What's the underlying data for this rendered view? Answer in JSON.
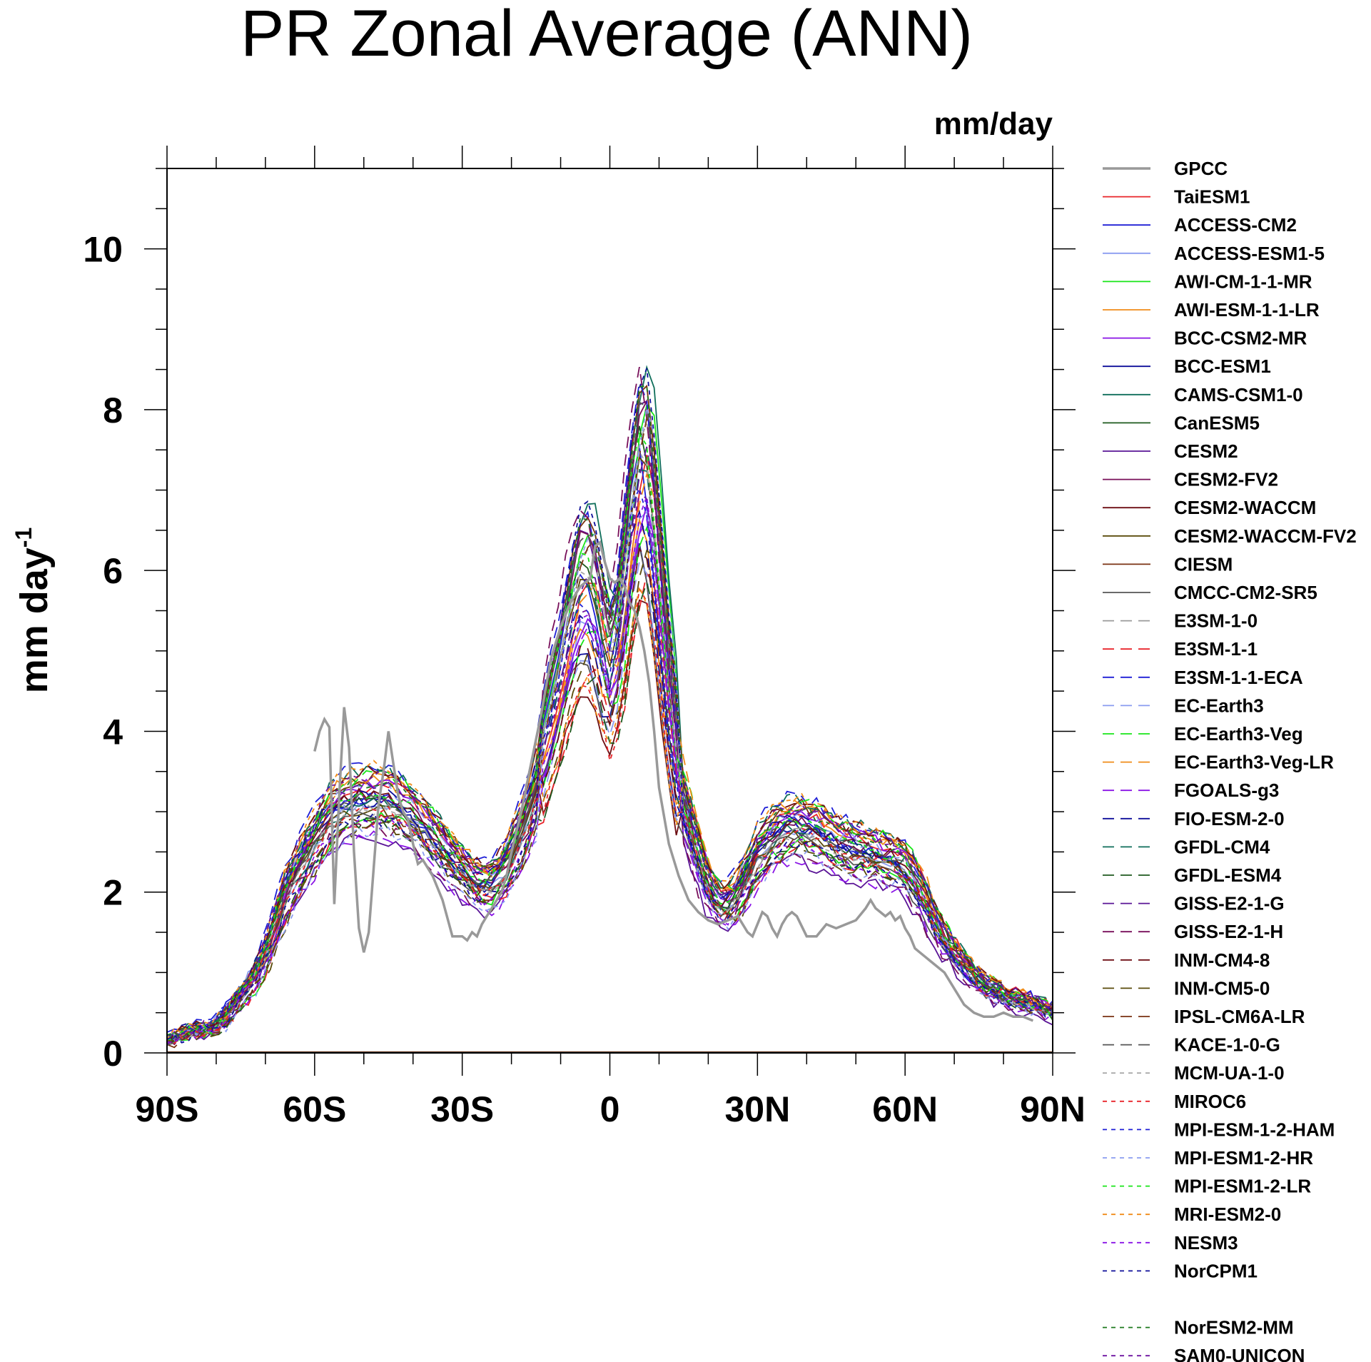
{
  "chart_data": {
    "type": "line",
    "title": "PR Zonal Average (ANN)",
    "units": "mm/day",
    "ylabel": "mm day",
    "ylabel_sup": "-1",
    "xlabel": "",
    "xlim": [
      -90,
      90
    ],
    "ylim": [
      0,
      11
    ],
    "xticks": [
      {
        "value": -90,
        "label": "90S"
      },
      {
        "value": -60,
        "label": "60S"
      },
      {
        "value": -30,
        "label": "30S"
      },
      {
        "value": 0,
        "label": "0"
      },
      {
        "value": 30,
        "label": "30N"
      },
      {
        "value": 60,
        "label": "60N"
      },
      {
        "value": 90,
        "label": "90N"
      }
    ],
    "yticks": [
      {
        "value": 0,
        "label": "0"
      },
      {
        "value": 2,
        "label": "2"
      },
      {
        "value": 4,
        "label": "4"
      },
      {
        "value": 6,
        "label": "6"
      },
      {
        "value": 8,
        "label": "8"
      },
      {
        "value": 10,
        "label": "10"
      }
    ],
    "grid": false,
    "legend_position": "right",
    "base_profile": {
      "lat": [
        -90,
        -88,
        -85,
        -82,
        -80,
        -78,
        -75,
        -72,
        -70,
        -68,
        -66,
        -63,
        -60,
        -57,
        -54,
        -51,
        -48,
        -45,
        -42,
        -39,
        -36,
        -33,
        -30,
        -27,
        -25,
        -22,
        -19,
        -16,
        -13,
        -10,
        -8,
        -6,
        -4,
        -2,
        0,
        2,
        4,
        6,
        7,
        8,
        10,
        12,
        14,
        17,
        20,
        22,
        24,
        26,
        28,
        30,
        32,
        35,
        38,
        41,
        44,
        47,
        50,
        53,
        56,
        59,
        60,
        62,
        65,
        68,
        71,
        74,
        77,
        80,
        83,
        86,
        88,
        90
      ],
      "values": [
        0.15,
        0.2,
        0.28,
        0.3,
        0.32,
        0.45,
        0.7,
        0.95,
        1.2,
        1.55,
        1.95,
        2.3,
        2.6,
        2.9,
        3.05,
        3.1,
        3.12,
        3.1,
        3.0,
        2.85,
        2.65,
        2.45,
        2.25,
        2.1,
        2.05,
        2.2,
        2.55,
        3.05,
        3.7,
        4.4,
        5.0,
        5.45,
        5.5,
        5.0,
        4.4,
        4.9,
        6.0,
        6.8,
        6.95,
        6.7,
        5.5,
        4.2,
        3.3,
        2.6,
        2.05,
        1.85,
        1.8,
        1.95,
        2.2,
        2.45,
        2.6,
        2.75,
        2.8,
        2.75,
        2.65,
        2.55,
        2.5,
        2.45,
        2.4,
        2.35,
        2.3,
        2.1,
        1.75,
        1.4,
        1.15,
        0.95,
        0.8,
        0.72,
        0.65,
        0.6,
        0.55,
        0.5
      ]
    },
    "gpcc": {
      "lat": [
        -60,
        -59,
        -58,
        -57,
        -56,
        -55,
        -54,
        -53,
        -52,
        -51,
        -50,
        -49,
        -48,
        -47,
        -46,
        -45,
        -44,
        -43,
        -42,
        -41,
        -40,
        -39,
        -38,
        -36,
        -34,
        -32,
        -30,
        -29,
        -28,
        -27,
        -26,
        -25,
        -24,
        -23,
        -22,
        -21,
        -20,
        -18,
        -16,
        -14,
        -12,
        -10,
        -8,
        -6,
        -4,
        -3,
        -2,
        -1,
        0,
        1,
        2,
        3,
        4,
        5,
        6,
        7,
        8,
        9,
        10,
        12,
        14,
        16,
        18,
        20,
        22,
        24,
        26,
        28,
        29,
        30,
        31,
        32,
        33,
        34,
        35,
        36,
        37,
        38,
        40,
        42,
        44,
        46,
        48,
        50,
        52,
        53,
        54,
        55,
        56,
        57,
        58,
        59,
        60,
        61,
        62,
        63,
        64,
        65,
        66,
        68,
        70,
        72,
        74,
        76,
        78,
        80,
        82,
        84,
        86,
        88,
        90
      ],
      "values": [
        3.75,
        4.0,
        4.15,
        4.05,
        1.85,
        3.2,
        4.3,
        3.8,
        2.5,
        1.55,
        1.25,
        1.5,
        2.3,
        3.1,
        3.5,
        4.0,
        3.6,
        3.2,
        3.0,
        2.9,
        2.6,
        2.35,
        2.4,
        2.2,
        1.9,
        1.45,
        1.45,
        1.4,
        1.5,
        1.45,
        1.6,
        1.7,
        1.8,
        1.9,
        2.0,
        2.2,
        2.5,
        3.0,
        3.6,
        4.2,
        4.9,
        5.3,
        5.6,
        5.8,
        5.9,
        6.3,
        6.35,
        6.1,
        5.9,
        5.85,
        5.9,
        5.8,
        5.6,
        5.5,
        5.3,
        5.0,
        4.6,
        4.0,
        3.3,
        2.6,
        2.2,
        1.9,
        1.75,
        1.65,
        1.6,
        1.65,
        1.7,
        1.5,
        1.45,
        1.6,
        1.75,
        1.7,
        1.55,
        1.45,
        1.6,
        1.7,
        1.75,
        1.7,
        1.45,
        1.45,
        1.6,
        1.55,
        1.6,
        1.65,
        1.8,
        1.9,
        1.8,
        1.75,
        1.7,
        1.75,
        1.65,
        1.7,
        1.55,
        1.45,
        1.3,
        1.25,
        1.2,
        1.15,
        1.1,
        1.0,
        0.8,
        0.6,
        0.5,
        0.45,
        0.45,
        0.5,
        0.45,
        0.45,
        0.4
      ]
    },
    "series": [
      {
        "name": "GPCC",
        "color": "#999999",
        "dash": "solid"
      },
      {
        "name": "TaiESM1",
        "color": "#e8242a",
        "dash": "solid"
      },
      {
        "name": "ACCESS-CM2",
        "color": "#1f1fd6",
        "dash": "solid"
      },
      {
        "name": "ACCESS-ESM1-5",
        "color": "#8a9cf0",
        "dash": "solid"
      },
      {
        "name": "AWI-CM-1-1-MR",
        "color": "#19e619",
        "dash": "solid"
      },
      {
        "name": "AWI-ESM-1-1-LR",
        "color": "#f08c19",
        "dash": "solid"
      },
      {
        "name": "BCC-CSM2-MR",
        "color": "#8a14e6",
        "dash": "solid"
      },
      {
        "name": "BCC-ESM1",
        "color": "#0f0f9a",
        "dash": "solid"
      },
      {
        "name": "CAMS-CSM1-0",
        "color": "#0f6e5a",
        "dash": "solid"
      },
      {
        "name": "CanESM5",
        "color": "#1e5a1e",
        "dash": "solid"
      },
      {
        "name": "CESM2",
        "color": "#5a1496",
        "dash": "solid"
      },
      {
        "name": "CESM2-FV2",
        "color": "#780f5a",
        "dash": "solid"
      },
      {
        "name": "CESM2-WACCM",
        "color": "#6e0f14",
        "dash": "solid"
      },
      {
        "name": "CESM2-WACCM-FV2",
        "color": "#5a4b0a",
        "dash": "solid"
      },
      {
        "name": "CIESM",
        "color": "#7a3212",
        "dash": "solid"
      },
      {
        "name": "CMCC-CM2-SR5",
        "color": "#555555",
        "dash": "solid"
      },
      {
        "name": "E3SM-1-0",
        "color": "#999999",
        "dash": "long"
      },
      {
        "name": "E3SM-1-1",
        "color": "#e8242a",
        "dash": "long"
      },
      {
        "name": "E3SM-1-1-ECA",
        "color": "#1f1fd6",
        "dash": "long"
      },
      {
        "name": "EC-Earth3",
        "color": "#8a9cf0",
        "dash": "long"
      },
      {
        "name": "EC-Earth3-Veg",
        "color": "#19e619",
        "dash": "long"
      },
      {
        "name": "EC-Earth3-Veg-LR",
        "color": "#f08c19",
        "dash": "long"
      },
      {
        "name": "FGOALS-g3",
        "color": "#8a14e6",
        "dash": "long"
      },
      {
        "name": "FIO-ESM-2-0",
        "color": "#0f0f9a",
        "dash": "long"
      },
      {
        "name": "GFDL-CM4",
        "color": "#0f6e5a",
        "dash": "long"
      },
      {
        "name": "GFDL-ESM4",
        "color": "#1e5a1e",
        "dash": "long"
      },
      {
        "name": "GISS-E2-1-G",
        "color": "#5a1496",
        "dash": "long"
      },
      {
        "name": "GISS-E2-1-H",
        "color": "#780f5a",
        "dash": "long"
      },
      {
        "name": "INM-CM4-8",
        "color": "#6e0f14",
        "dash": "long"
      },
      {
        "name": "INM-CM5-0",
        "color": "#5a4b0a",
        "dash": "long"
      },
      {
        "name": "IPSL-CM6A-LR",
        "color": "#7a3212",
        "dash": "long"
      },
      {
        "name": "KACE-1-0-G",
        "color": "#555555",
        "dash": "long"
      },
      {
        "name": "MCM-UA-1-0",
        "color": "#aaaaaa",
        "dash": "short"
      },
      {
        "name": "MIROC6",
        "color": "#e8242a",
        "dash": "short"
      },
      {
        "name": "MPI-ESM-1-2-HAM",
        "color": "#1f1fd6",
        "dash": "short"
      },
      {
        "name": "MPI-ESM1-2-HR",
        "color": "#8a9cf0",
        "dash": "short"
      },
      {
        "name": "MPI-ESM1-2-LR",
        "color": "#19e619",
        "dash": "short"
      },
      {
        "name": "MRI-ESM2-0",
        "color": "#f08c19",
        "dash": "short"
      },
      {
        "name": "NESM3",
        "color": "#8a14e6",
        "dash": "short"
      },
      {
        "name": "NorCPM1",
        "color": "#0f0f9a",
        "dash": "short"
      },
      {
        "name": "NorESM2-MM",
        "color": "#1e7a1e",
        "dash": "short"
      },
      {
        "name": "SAM0-UNICON",
        "color": "#6e14a0",
        "dash": "short"
      }
    ]
  }
}
